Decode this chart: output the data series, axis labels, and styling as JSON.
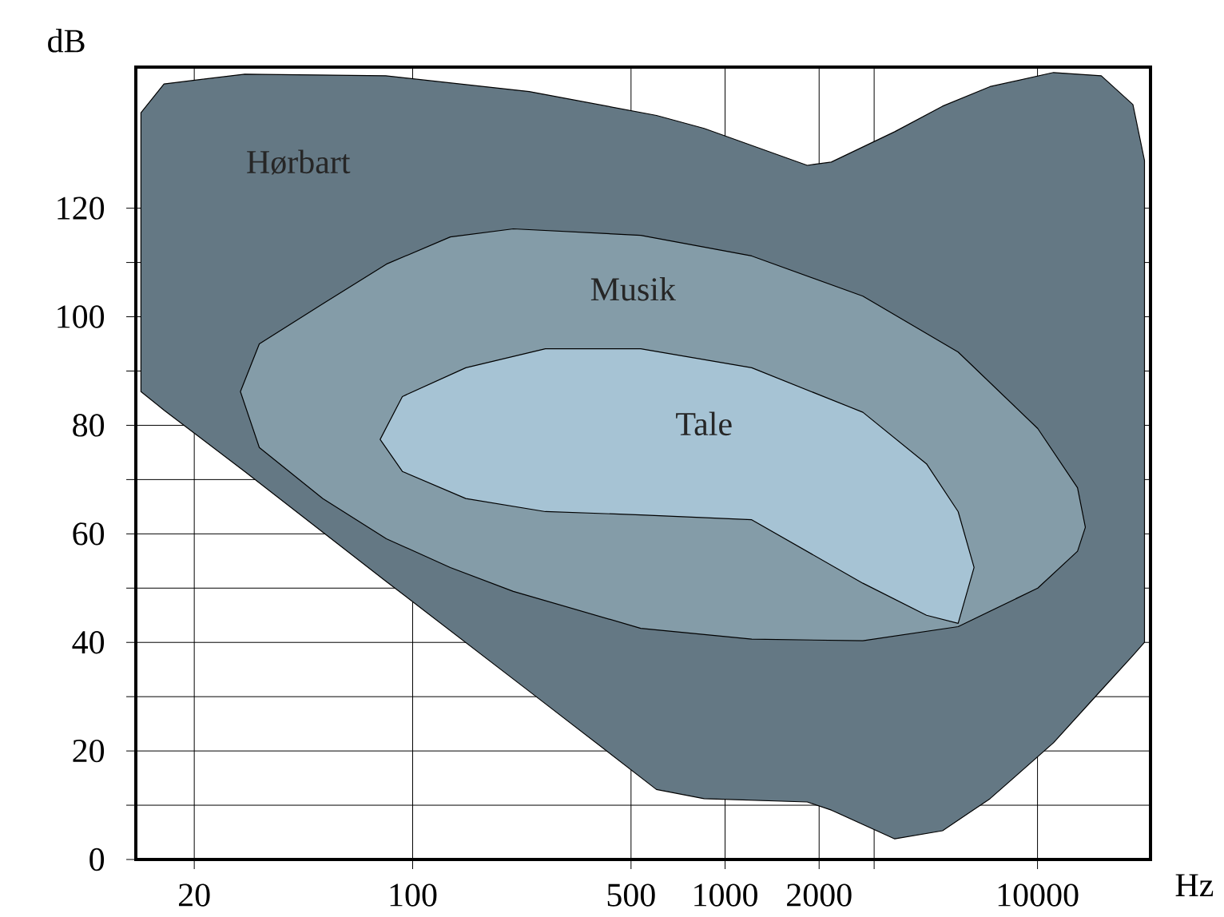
{
  "chart_data": {
    "type": "area",
    "xlabel": "Hz",
    "ylabel": "dB",
    "xlim": [
      13,
      23000
    ],
    "ylim": [
      0,
      146
    ],
    "log": "x",
    "grid": true,
    "xticks": [
      20,
      100,
      500,
      1000,
      2000,
      {
        "value": 3000,
        "label": null
      },
      10000
    ],
    "yticks": [
      0,
      20,
      40,
      60,
      80,
      100,
      120
    ],
    "series": [
      {
        "name": "Hørbart",
        "color": "#647884",
        "x": [
          13.5,
          16,
          29,
          82,
          236,
          603,
          857,
          1833,
          2188,
          3492,
          4967,
          7046,
          11250,
          16000,
          20200,
          22000,
          22000,
          20200,
          16000,
          11250,
          7046,
          4967,
          3492,
          2188,
          1833,
          857,
          603,
          236,
          82,
          29,
          16,
          13.5
        ],
        "values": [
          137.6,
          142.9,
          144.7,
          144.4,
          141.5,
          137.1,
          134.7,
          127.9,
          128.5,
          134.1,
          138.8,
          142.4,
          145,
          144.4,
          139.1,
          128.8,
          40,
          37.6,
          31.2,
          21.5,
          11.2,
          5.3,
          3.8,
          9.1,
          10.6,
          11.2,
          12.9,
          31.0,
          51.3,
          71.5,
          82.8,
          86.2
        ]
      },
      {
        "name": "Musik",
        "color": "#849ca8",
        "x": [
          28.1,
          32.3,
          51.6,
          82.4,
          132,
          210,
          537,
          1217,
          2761,
          5572,
          10020,
          13430,
          14230,
          13430,
          10020,
          5572,
          2761,
          1217,
          537,
          210,
          132,
          82.4,
          51.6,
          32.3
        ],
        "values": [
          86.2,
          95.0,
          102.4,
          109.7,
          114.7,
          116.2,
          115.0,
          111.2,
          103.8,
          93.5,
          79.4,
          68.5,
          61.2,
          56.8,
          50,
          42.9,
          40.3,
          40.6,
          42.6,
          49.4,
          53.8,
          59.1,
          66.5,
          75.9
        ]
      },
      {
        "name": "Tale",
        "color": "#a6c3d4",
        "x": [
          78.7,
          92.7,
          148,
          266,
          537,
          1217,
          2761,
          4413,
          5572,
          6266,
          5572,
          4413,
          2761,
          1217,
          537,
          266,
          148,
          92.7
        ],
        "values": [
          77.4,
          85.3,
          90.6,
          94.1,
          94.1,
          90.6,
          82.4,
          72.9,
          64.1,
          53.8,
          43.5,
          45,
          50.9,
          62.6,
          63.5,
          64.1,
          66.5,
          71.5
        ]
      }
    ]
  }
}
